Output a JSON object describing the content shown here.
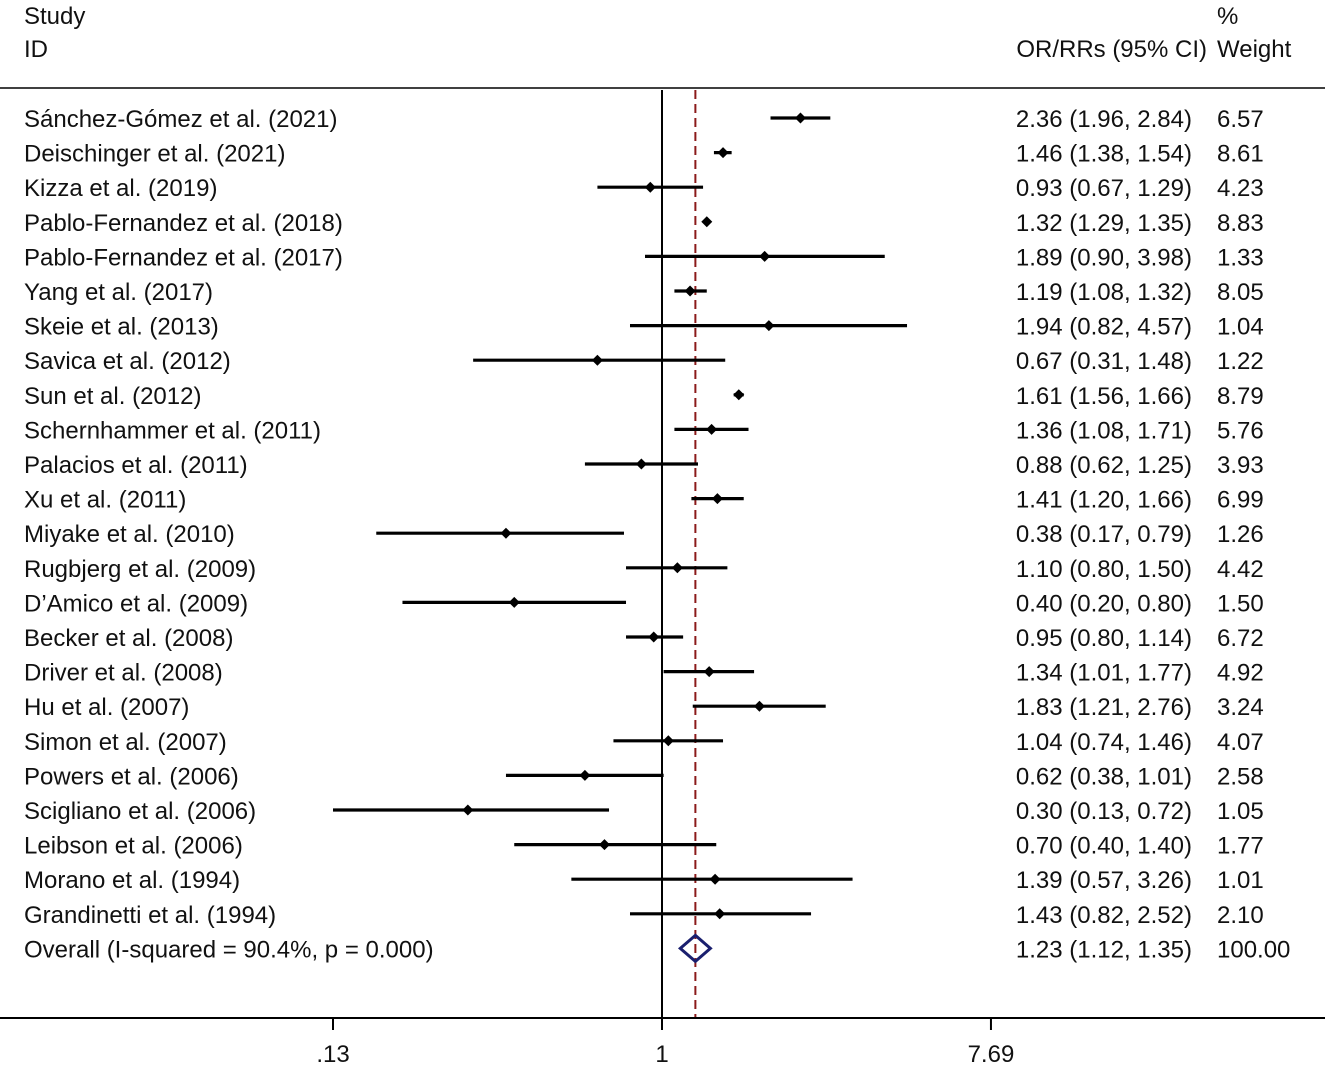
{
  "header": {
    "study_line1": "Study",
    "study_line2": "ID",
    "effect_label": "OR/RRs (95% CI)",
    "weight_line1": "%",
    "weight_line2": "Weight"
  },
  "chart_data": {
    "type": "forest",
    "xscale": "log",
    "reference_value": 1,
    "pooled_estimate_line": 1.23,
    "xticks": [
      0.13,
      1,
      7.69
    ],
    "xtick_labels": [
      ".13",
      "1",
      "7.69"
    ],
    "colors": {
      "marks": "#000000",
      "diamond": "#1a1f6e",
      "pooled_line": "#8b1a1a"
    },
    "studies": [
      {
        "label": "Sánchez-Gómez et al. (2021)",
        "or": 2.36,
        "lo": 1.96,
        "hi": 2.84,
        "ci_text": "2.36 (1.96, 2.84)",
        "weight": "6.57"
      },
      {
        "label": "Deischinger et al. (2021)",
        "or": 1.46,
        "lo": 1.38,
        "hi": 1.54,
        "ci_text": "1.46 (1.38, 1.54)",
        "weight": "8.61"
      },
      {
        "label": "Kizza et al. (2019)",
        "or": 0.93,
        "lo": 0.67,
        "hi": 1.29,
        "ci_text": "0.93 (0.67, 1.29)",
        "weight": "4.23"
      },
      {
        "label": "Pablo-Fernandez et al. (2018)",
        "or": 1.32,
        "lo": 1.29,
        "hi": 1.35,
        "ci_text": "1.32 (1.29, 1.35)",
        "weight": "8.83"
      },
      {
        "label": "Pablo-Fernandez et al. (2017)",
        "or": 1.89,
        "lo": 0.9,
        "hi": 3.98,
        "ci_text": "1.89 (0.90, 3.98)",
        "weight": "1.33"
      },
      {
        "label": "Yang et al. (2017)",
        "or": 1.19,
        "lo": 1.08,
        "hi": 1.32,
        "ci_text": "1.19 (1.08, 1.32)",
        "weight": "8.05"
      },
      {
        "label": "Skeie et al. (2013)",
        "or": 1.94,
        "lo": 0.82,
        "hi": 4.57,
        "ci_text": "1.94 (0.82, 4.57)",
        "weight": "1.04"
      },
      {
        "label": "Savica et al. (2012)",
        "or": 0.67,
        "lo": 0.31,
        "hi": 1.48,
        "ci_text": "0.67 (0.31, 1.48)",
        "weight": "1.22"
      },
      {
        "label": "Sun et al. (2012)",
        "or": 1.61,
        "lo": 1.56,
        "hi": 1.66,
        "ci_text": "1.61 (1.56, 1.66)",
        "weight": "8.79"
      },
      {
        "label": "Schernhammer et al. (2011)",
        "or": 1.36,
        "lo": 1.08,
        "hi": 1.71,
        "ci_text": "1.36 (1.08, 1.71)",
        "weight": "5.76"
      },
      {
        "label": "Palacios et al. (2011)",
        "or": 0.88,
        "lo": 0.62,
        "hi": 1.25,
        "ci_text": "0.88 (0.62, 1.25)",
        "weight": "3.93"
      },
      {
        "label": "Xu et al. (2011)",
        "or": 1.41,
        "lo": 1.2,
        "hi": 1.66,
        "ci_text": "1.41 (1.20, 1.66)",
        "weight": "6.99"
      },
      {
        "label": "Miyake et al. (2010)",
        "or": 0.38,
        "lo": 0.17,
        "hi": 0.79,
        "ci_text": "0.38 (0.17, 0.79)",
        "weight": "1.26"
      },
      {
        "label": "Rugbjerg et al. (2009)",
        "or": 1.1,
        "lo": 0.8,
        "hi": 1.5,
        "ci_text": "1.10 (0.80, 1.50)",
        "weight": "4.42"
      },
      {
        "label": "D’Amico et al. (2009)",
        "or": 0.4,
        "lo": 0.2,
        "hi": 0.8,
        "ci_text": "0.40 (0.20, 0.80)",
        "weight": "1.50"
      },
      {
        "label": "Becker et al. (2008)",
        "or": 0.95,
        "lo": 0.8,
        "hi": 1.14,
        "ci_text": "0.95 (0.80, 1.14)",
        "weight": "6.72"
      },
      {
        "label": "Driver et al. (2008)",
        "or": 1.34,
        "lo": 1.01,
        "hi": 1.77,
        "ci_text": "1.34 (1.01, 1.77)",
        "weight": "4.92"
      },
      {
        "label": "Hu et al. (2007)",
        "or": 1.83,
        "lo": 1.21,
        "hi": 2.76,
        "ci_text": "1.83 (1.21, 2.76)",
        "weight": "3.24"
      },
      {
        "label": "Simon et al. (2007)",
        "or": 1.04,
        "lo": 0.74,
        "hi": 1.46,
        "ci_text": "1.04 (0.74, 1.46)",
        "weight": "4.07"
      },
      {
        "label": "Powers et al. (2006)",
        "or": 0.62,
        "lo": 0.38,
        "hi": 1.01,
        "ci_text": "0.62 (0.38, 1.01)",
        "weight": "2.58"
      },
      {
        "label": "Scigliano et al. (2006)",
        "or": 0.3,
        "lo": 0.13,
        "hi": 0.72,
        "ci_text": "0.30 (0.13, 0.72)",
        "weight": "1.05"
      },
      {
        "label": "Leibson et al. (2006)",
        "or": 0.7,
        "lo": 0.4,
        "hi": 1.4,
        "ci_text": "0.70 (0.40, 1.40)",
        "weight": "1.77"
      },
      {
        "label": "Morano et al. (1994)",
        "or": 1.39,
        "lo": 0.57,
        "hi": 3.26,
        "ci_text": "1.39 (0.57, 3.26)",
        "weight": "1.01"
      },
      {
        "label": "Grandinetti et al. (1994)",
        "or": 1.43,
        "lo": 0.82,
        "hi": 2.52,
        "ci_text": "1.43 (0.82, 2.52)",
        "weight": "2.10"
      }
    ],
    "overall": {
      "label": "Overall  (I-squared = 90.4%, p = 0.000)",
      "or": 1.23,
      "lo": 1.12,
      "hi": 1.35,
      "ci_text": "1.23 (1.12, 1.35)",
      "weight": "100.00"
    }
  }
}
